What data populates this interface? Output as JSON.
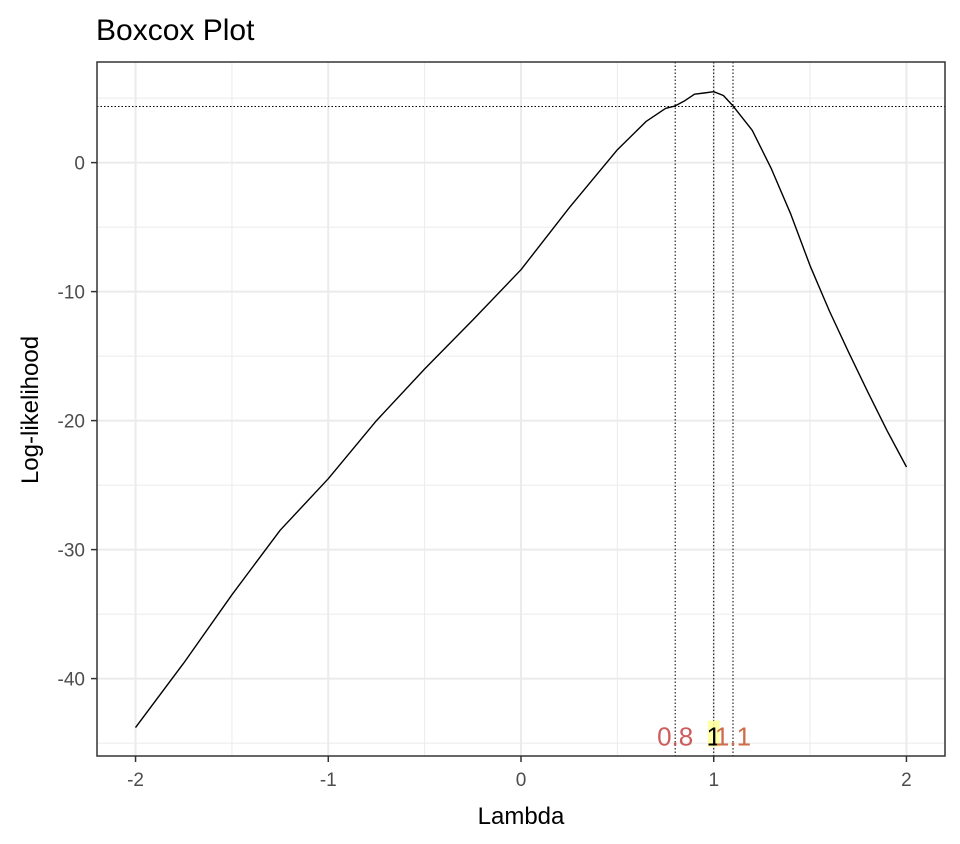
{
  "chart_data": {
    "type": "line",
    "title": "Boxcox Plot",
    "xlabel": "Lambda",
    "ylabel": "Log-likelihood",
    "xlim": [
      -2.2,
      2.2
    ],
    "ylim": [
      -46,
      7.8
    ],
    "x_ticks": [
      -2,
      -1,
      0,
      1,
      2
    ],
    "x_tick_labels": [
      "-2",
      "-1",
      "0",
      "1",
      "2"
    ],
    "y_ticks": [
      -40,
      -30,
      -20,
      -10,
      0
    ],
    "y_tick_labels": [
      "-40",
      "-30",
      "-20",
      "-10",
      "0"
    ],
    "grid": true,
    "series": [
      {
        "x": [
          -2,
          -1.75,
          -1.5,
          -1.25,
          -1,
          -0.75,
          -0.5,
          -0.25,
          0,
          0.25,
          0.5,
          0.65,
          0.75,
          0.8,
          0.85,
          0.9,
          0.95,
          1,
          1.05,
          1.1,
          1.2,
          1.3,
          1.4,
          1.5,
          1.6,
          1.7,
          1.8,
          1.9,
          2
        ],
        "y": [
          -43.8,
          -38.8,
          -33.5,
          -28.5,
          -24.5,
          -20.0,
          -16.0,
          -12.2,
          -8.3,
          -3.5,
          1.0,
          3.2,
          4.2,
          4.4,
          4.8,
          5.3,
          5.4,
          5.5,
          5.2,
          4.4,
          2.5,
          -0.5,
          -4.0,
          -8.0,
          -11.5,
          -14.7,
          -17.8,
          -20.8,
          -23.6
        ]
      }
    ],
    "reference_lines": {
      "horizontal_y": 4.35,
      "vertical_x": [
        0.8,
        1,
        1.1
      ]
    },
    "annotations": [
      {
        "text": "0.8",
        "x": 0.8,
        "y": -44.5,
        "color": "#cd5c5c"
      },
      {
        "text": "1",
        "x": 1,
        "y": -44.5,
        "color": "#000000"
      },
      {
        "text": "1.1",
        "x": 1.1,
        "y": -44.5,
        "color": "#cd6b4a"
      }
    ],
    "colors": {
      "line": "#000000",
      "grid": "#ebebeb",
      "panel_border": "#333333",
      "highlight_fill": "#ffff99"
    }
  }
}
